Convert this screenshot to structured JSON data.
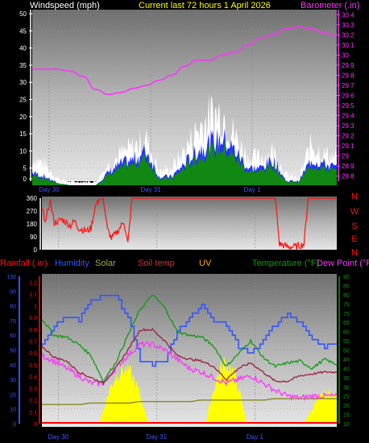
{
  "header": {
    "wind_label": "Windspeed (mph)",
    "title": "Current last 72 hours 1 April 2026",
    "baro_label": "Barometer (.in)"
  },
  "day_labels": [
    "Day 30",
    "Day 31",
    "Day 1"
  ],
  "compass": [
    "N",
    "W",
    "S",
    "E",
    "N"
  ],
  "bottom_header": {
    "rain": "Rainfall (.in)",
    "humidity": "Humidity",
    "solar": "Solar",
    "soil": "Soil temp",
    "uv": "UV",
    "temp": "Temperature (°F)",
    "dew": "Dew Point (°F)"
  },
  "colors": {
    "wind_gust": "#ffffff",
    "wind_avg_blue": "#2233ff",
    "wind_avg_green": "#118811",
    "barometer": "#ff33ff",
    "direction": "#ff1111",
    "humidity": "#3355ff",
    "solar": "#ffff00",
    "soil": "#888822",
    "uv": "#ffaa00",
    "temperature": "#119911",
    "temp2": "#992244",
    "dew": "#ff33ff",
    "rain": "#ff0000"
  },
  "chart_data": [
    {
      "type": "line",
      "title": "Current last 72 hours 1 April 2026",
      "x_hours": [
        0,
        3,
        6,
        9,
        12,
        15,
        18,
        21,
        24,
        27,
        30,
        33,
        36,
        39,
        42,
        45,
        48,
        51,
        54,
        57,
        60,
        63,
        66,
        69,
        72
      ],
      "y_left_ticks": [
        0,
        5,
        10,
        15,
        20,
        25,
        30,
        35,
        40,
        45,
        50
      ],
      "y_right_ticks": [
        28.8,
        28.9,
        29,
        29.1,
        29.2,
        29.3,
        29.4,
        29.5,
        29.6,
        29.7,
        29.8,
        29.9,
        30,
        30.1,
        30.2,
        30.3,
        30.4
      ],
      "ylim_left": [
        0,
        50
      ],
      "ylim_right": [
        28.75,
        30.45
      ],
      "series": [
        {
          "name": "Windspeed (mph)",
          "values": [
            8,
            6,
            2,
            1,
            1,
            1,
            6,
            9,
            11,
            13,
            4,
            5,
            10,
            16,
            20,
            21,
            14,
            8,
            8,
            10,
            3,
            2,
            12,
            9,
            8
          ]
        },
        {
          "name": "Windspeed (mph)",
          "values": [
            3,
            2,
            0.5,
            0,
            0,
            0,
            3,
            5,
            6,
            8,
            2,
            2,
            5,
            8,
            10,
            11,
            8,
            4,
            4,
            6,
            1,
            1,
            6,
            5,
            4
          ]
        },
        {
          "name": "Barometer (.in)",
          "values": [
            29.86,
            29.86,
            29.86,
            29.84,
            29.79,
            29.66,
            29.61,
            29.63,
            29.67,
            29.7,
            29.75,
            29.8,
            29.89,
            29.95,
            29.95,
            30.0,
            30.03,
            30.1,
            30.17,
            30.2,
            30.26,
            30.28,
            30.26,
            30.22,
            30.19
          ]
        }
      ]
    },
    {
      "type": "line",
      "y_ticks": [
        0,
        90,
        180,
        270,
        360
      ],
      "ylim": [
        0,
        360
      ],
      "x_hours": [
        0,
        1,
        2,
        3,
        4,
        5,
        6,
        7,
        8,
        9,
        10,
        11,
        12,
        13,
        14,
        15,
        16,
        17,
        18,
        19,
        20,
        21,
        22,
        23,
        24,
        25,
        26,
        27,
        28,
        29,
        30,
        31,
        32,
        33,
        34,
        35,
        36,
        37,
        38,
        39,
        40,
        41,
        42,
        43,
        44,
        45,
        46,
        47,
        48,
        49,
        50,
        51,
        52,
        53,
        54,
        55,
        56,
        57,
        58,
        59,
        60,
        61,
        62,
        63,
        64,
        65,
        66,
        67,
        68,
        69,
        70,
        71,
        72
      ],
      "values": [
        280,
        200,
        350,
        190,
        200,
        210,
        190,
        170,
        200,
        150,
        140,
        130,
        150,
        300,
        350,
        360,
        140,
        80,
        110,
        150,
        200,
        40,
        360,
        360,
        360,
        360,
        360,
        360,
        360,
        360,
        360,
        360,
        360,
        360,
        360,
        360,
        360,
        360,
        360,
        360,
        360,
        360,
        360,
        360,
        360,
        360,
        360,
        360,
        360,
        360,
        360,
        360,
        360,
        360,
        360,
        360,
        360,
        360,
        40,
        30,
        20,
        20,
        20,
        30,
        40,
        360,
        360,
        360,
        360,
        360,
        360,
        360,
        360
      ]
    },
    {
      "type": "line",
      "x_hours": [
        0,
        3,
        6,
        9,
        12,
        15,
        18,
        21,
        24,
        27,
        30,
        33,
        36,
        39,
        42,
        45,
        48,
        51,
        54,
        57,
        60,
        63,
        66,
        69,
        72
      ],
      "y_left_ticks": [
        0,
        10,
        20,
        30,
        40,
        50,
        60,
        70,
        80,
        90,
        100
      ],
      "y_mid_ticks": [
        0,
        0.1,
        0.2,
        0.3,
        0.4,
        0.5,
        0.6,
        0.7,
        0.8,
        0.9,
        1,
        1.1,
        1.2
      ],
      "y_right_ticks": [
        10,
        15,
        20,
        25,
        30,
        35,
        40,
        45,
        50,
        55,
        60,
        65,
        70,
        75,
        80,
        85,
        90
      ],
      "ylim_left": [
        0,
        100
      ],
      "ylim_right": [
        10,
        90
      ],
      "series": [
        {
          "name": "Humidity",
          "values": [
            55,
            66,
            73,
            70,
            84,
            86,
            86,
            72,
            43,
            40,
            43,
            62,
            72,
            80,
            70,
            67,
            52,
            47,
            57,
            67,
            74,
            68,
            58,
            52,
            54
          ]
        },
        {
          "name": "Temperature (°F)",
          "values": [
            67,
            58,
            57,
            53,
            47,
            33,
            43,
            58,
            72,
            80,
            73,
            60,
            58,
            57,
            52,
            41,
            48,
            55,
            46,
            41,
            43,
            44,
            40,
            45,
            42
          ]
        },
        {
          "name": "Soil temp",
          "values": [
            52,
            46,
            44,
            38,
            35,
            32,
            40,
            50,
            61,
            61,
            55,
            47,
            45,
            44,
            41,
            34,
            40,
            43,
            38,
            33,
            33,
            36,
            37,
            38,
            38
          ]
        },
        {
          "name": "Dew Point (°F)",
          "values": [
            47,
            44,
            40,
            36,
            32,
            32,
            40,
            47,
            53,
            53,
            50,
            45,
            40,
            38,
            35,
            32,
            34,
            36,
            32,
            28,
            25,
            24,
            25,
            25,
            25
          ]
        },
        {
          "name": "Solar",
          "values": [
            0,
            0,
            0,
            0,
            0,
            0,
            0,
            0,
            20,
            30,
            10,
            0,
            0,
            0,
            0,
            0,
            0,
            0,
            0,
            0,
            0,
            0,
            0,
            10,
            10
          ]
        },
        {
          "name": "UV",
          "values": [
            13,
            13,
            13,
            13,
            14,
            14,
            14,
            14,
            15,
            15,
            15,
            15,
            15,
            16,
            16,
            16,
            16,
            16,
            16,
            17,
            17,
            17,
            17,
            17,
            17
          ]
        },
        {
          "name": "Rainfall (.in)",
          "values": [
            0,
            0,
            0,
            0,
            0,
            0,
            0,
            0,
            0,
            0,
            0,
            0,
            0,
            0,
            0,
            0,
            0,
            0,
            0,
            0,
            0,
            0,
            0,
            0,
            0
          ]
        }
      ]
    }
  ]
}
